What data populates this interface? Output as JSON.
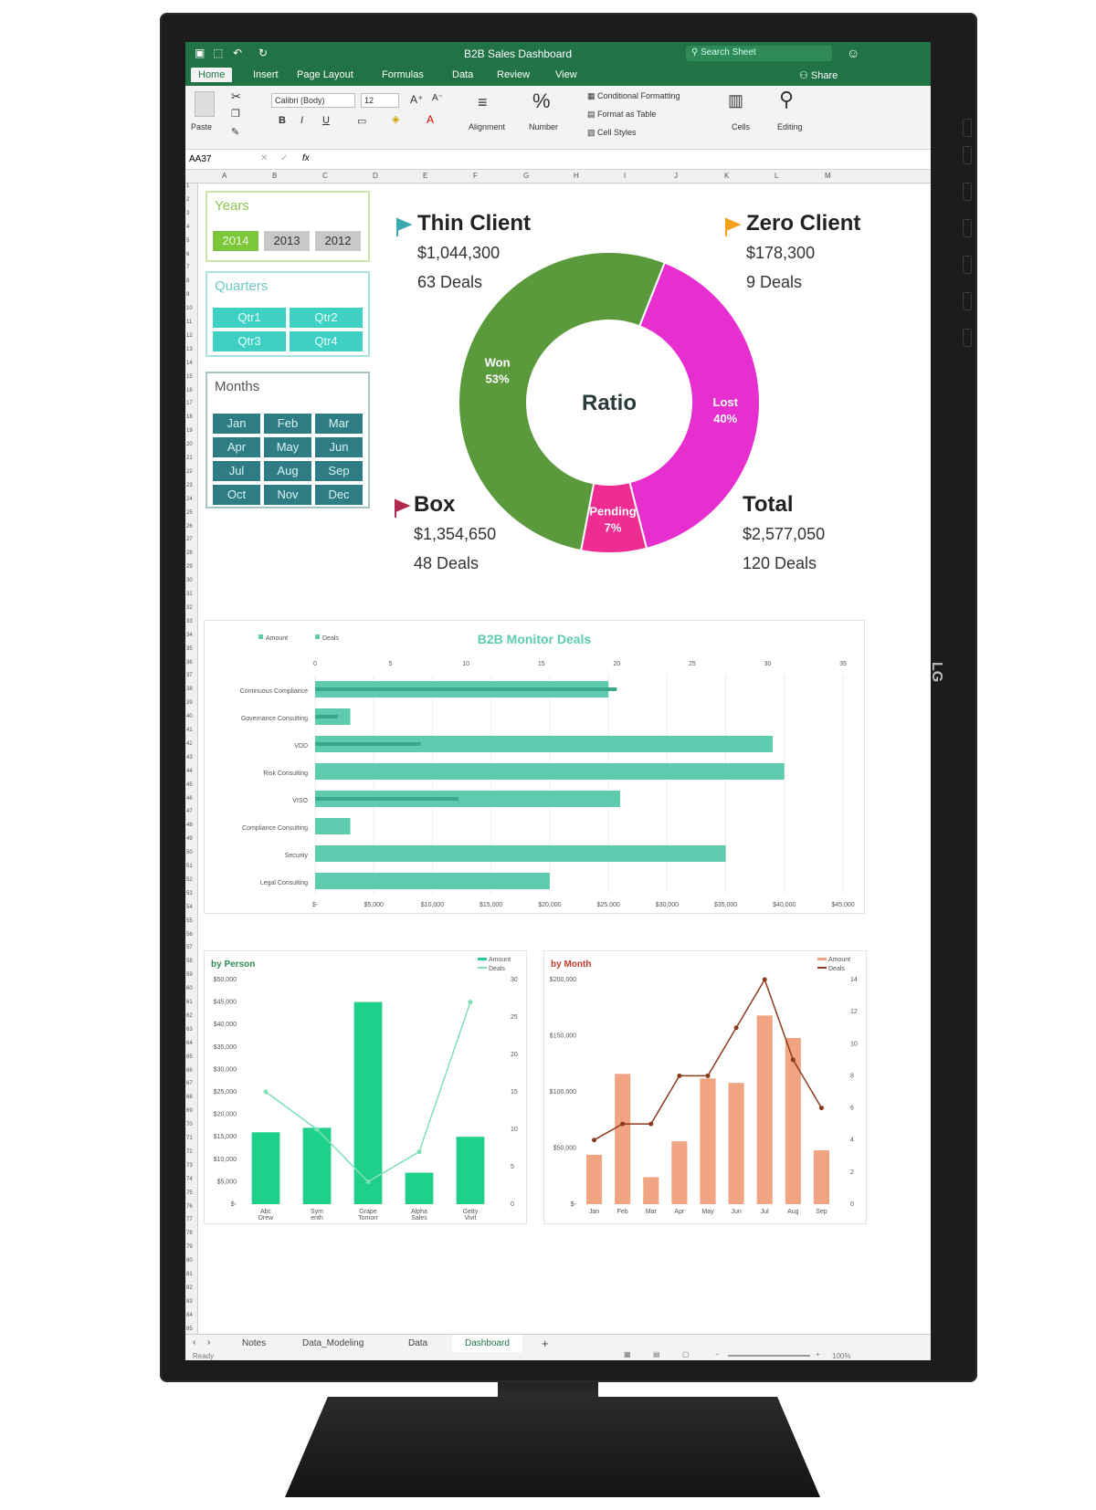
{
  "colors": {
    "excel_green": "#217346",
    "won": "#5b9a3c",
    "lost": "#e72fd0",
    "pending": "#ee2c91",
    "teal": "#5ccbae",
    "bar_orange": "#f0a482",
    "line_brown": "#8b3a1e",
    "person_bar": "#1ed08a",
    "person_line": "#7fe0b5"
  },
  "brand": "LG",
  "titlebar": {
    "title": "B2B Sales Dashboard",
    "search_placeholder": "Search Sheet"
  },
  "tabs": [
    "Home",
    "Insert",
    "Page Layout",
    "Formulas",
    "Data",
    "Review",
    "View"
  ],
  "share_label": "Share",
  "ribbon": {
    "paste": "Paste",
    "font_name": "Calibri (Body)",
    "font_size": "12",
    "bold": "B",
    "italic": "I",
    "underline": "U",
    "alignment": "Alignment",
    "number": "Number",
    "cond_format": "Conditional Formatting",
    "format_table": "Format as Table",
    "cell_styles": "Cell Styles",
    "cells": "Cells",
    "editing": "Editing"
  },
  "formula": {
    "cell_ref": "AA37",
    "fx": "fx"
  },
  "columns": [
    "A",
    "B",
    "C",
    "D",
    "E",
    "F",
    "G",
    "H",
    "I",
    "J",
    "K",
    "L",
    "M"
  ],
  "slicers": {
    "years": {
      "title": "Years",
      "items": [
        "2014",
        "2013",
        "2012"
      ]
    },
    "quarters": {
      "title": "Quarters",
      "items": [
        "Qtr1",
        "Qtr2",
        "Qtr3",
        "Qtr4"
      ]
    },
    "months": {
      "title": "Months",
      "items": [
        "Jan",
        "Feb",
        "Mar",
        "Apr",
        "May",
        "Jun",
        "Jul",
        "Aug",
        "Sep",
        "Oct",
        "Nov",
        "Dec"
      ]
    }
  },
  "kpis": {
    "thin": {
      "title": "Thin Client",
      "amount": "$1,044,300",
      "deals": "63 Deals"
    },
    "zero": {
      "title": "Zero Client",
      "amount": "$178,300",
      "deals": "9 Deals"
    },
    "box": {
      "title": "Box",
      "amount": "$1,354,650",
      "deals": "48 Deals"
    },
    "total": {
      "title": "Total",
      "amount": "$2,577,050",
      "deals": "120 Deals"
    }
  },
  "chart_data": [
    {
      "type": "pie",
      "title": "",
      "center_label": "Ratio",
      "slices": [
        {
          "label": "Won",
          "value": 53,
          "display": "53%"
        },
        {
          "label": "Lost",
          "value": 40,
          "display": "40%"
        },
        {
          "label": "Pending",
          "value": 7,
          "display": "7%"
        }
      ]
    },
    {
      "type": "bar",
      "title": "B2B Monitor Deals",
      "legend": [
        "Amount",
        "Deals"
      ],
      "categories": [
        "Continuous Compliance",
        "Governance Consulting",
        "VDD",
        "Risk Consulting",
        "VISO",
        "Compliance Consulting",
        "Security",
        "Legal Consulting"
      ],
      "series": [
        {
          "name": "Amount",
          "values": [
            25000,
            3000,
            39000,
            40000,
            26000,
            3000,
            35000,
            20000
          ]
        },
        {
          "name": "Deals",
          "values": [
            20,
            1.5,
            7,
            0,
            9.5,
            0,
            0,
            0
          ]
        }
      ],
      "x_ticks_amount": [
        "$-",
        "$5,000",
        "$10,000",
        "$15,000",
        "$20,000",
        "$25,000",
        "$30,000",
        "$35,000",
        "$40,000",
        "$45,000"
      ],
      "x_ticks_deals": [
        "0",
        "5",
        "10",
        "15",
        "20",
        "25",
        "30",
        "35"
      ],
      "xlim_amount": [
        0,
        45000
      ]
    },
    {
      "type": "bar",
      "title": "by Person",
      "legend": [
        "Amount",
        "Deals"
      ],
      "categories": [
        "Abc\nDrew",
        "Sym\nenth",
        "Grape\nTomorr",
        "Alpha\nSales",
        "Getty\nVivit"
      ],
      "series": [
        {
          "name": "Amount",
          "values": [
            16000,
            17000,
            45000,
            7000,
            15000
          ]
        },
        {
          "name": "Deals",
          "values": [
            15,
            10,
            3,
            7,
            27
          ]
        }
      ],
      "y_ticks": [
        "$50,000",
        "$45,000",
        "$40,000",
        "$35,000",
        "$30,000",
        "$25,000",
        "$20,000",
        "$15,000",
        "$10,000",
        "$5,000",
        "$-"
      ],
      "y2_ticks": [
        "30",
        "25",
        "20",
        "15",
        "10",
        "5",
        "0"
      ],
      "ylim": [
        0,
        50000
      ],
      "y2lim": [
        0,
        30
      ]
    },
    {
      "type": "bar",
      "title": "by Month",
      "legend": [
        "Amount",
        "Deals"
      ],
      "categories": [
        "Jan",
        "Feb",
        "Mar",
        "Apr",
        "May",
        "Jun",
        "Jul",
        "Aug",
        "Sep"
      ],
      "series": [
        {
          "name": "Amount",
          "values": [
            55000,
            145000,
            30000,
            70000,
            140000,
            135000,
            210000,
            185000,
            60000
          ]
        },
        {
          "name": "Deals",
          "values": [
            4,
            5,
            5,
            8,
            8,
            11,
            14,
            9,
            6
          ]
        }
      ],
      "y_ticks": [
        "$200,000",
        "$150,000",
        "$100,000",
        "$50,000",
        "$-"
      ],
      "y2_ticks": [
        "14",
        "12",
        "10",
        "8",
        "6",
        "4",
        "2",
        "0"
      ],
      "ylim": [
        0,
        250000
      ],
      "y2lim": [
        0,
        14
      ]
    }
  ],
  "sheet_tabs": [
    "Notes",
    "Data_Modeling",
    "Data",
    "Dashboard"
  ],
  "status": {
    "ready": "Ready",
    "zoom": "100%"
  }
}
